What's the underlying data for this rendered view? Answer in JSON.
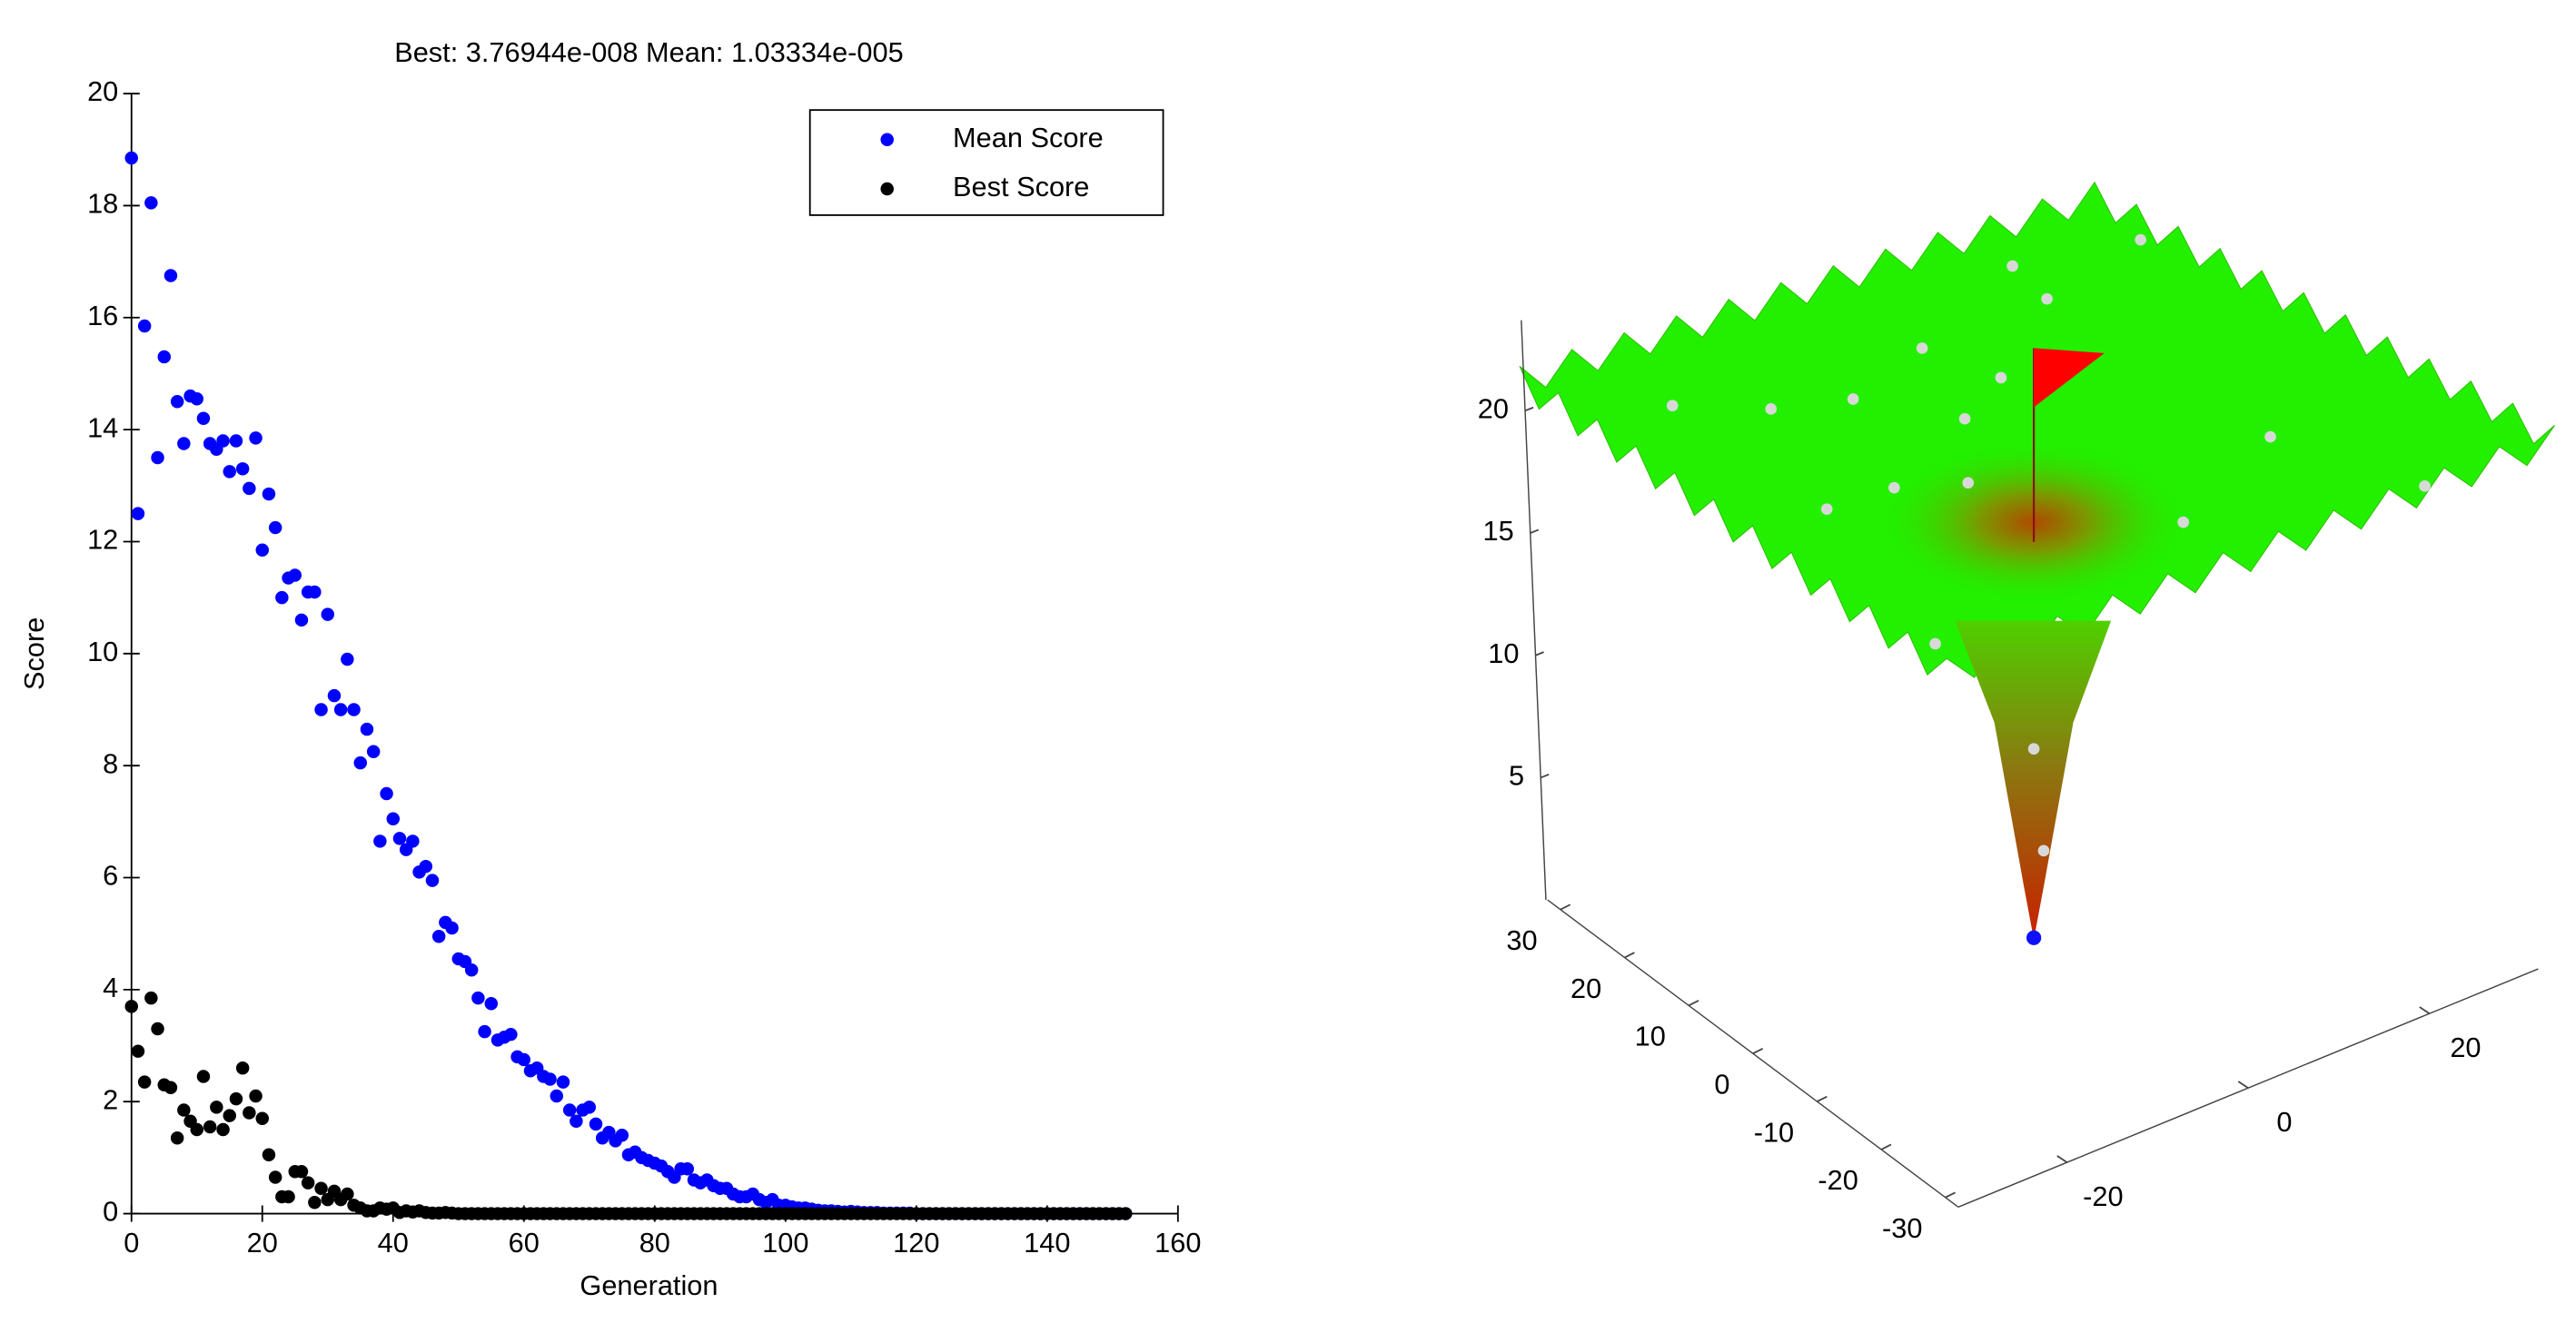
{
  "chart_data": [
    {
      "type": "scatter",
      "title": "Best: 3.76944e-008 Mean: 1.03334e-005",
      "x_label": "Generation",
      "y_label": "Score",
      "xlim": [
        0,
        160
      ],
      "xticks": [
        0,
        20,
        40,
        60,
        80,
        100,
        120,
        140,
        160
      ],
      "ylim": [
        0,
        20
      ],
      "yticks": [
        0,
        2,
        4,
        6,
        8,
        10,
        12,
        14,
        16,
        18,
        20
      ],
      "legend": "northeast",
      "x": [
        0,
        1,
        2,
        3,
        4,
        5,
        6,
        7,
        8,
        9,
        10,
        11,
        12,
        13,
        14,
        15,
        16,
        17,
        18,
        19,
        20,
        21,
        22,
        23,
        24,
        25,
        26,
        27,
        28,
        29,
        30,
        31,
        32,
        33,
        34,
        35,
        36,
        37,
        38,
        39,
        40,
        41,
        42,
        43,
        44,
        45,
        46,
        47,
        48,
        49,
        50,
        51,
        52,
        53,
        54,
        55,
        56,
        57,
        58,
        59,
        60,
        61,
        62,
        63,
        64,
        65,
        66,
        67,
        68,
        69,
        70,
        71,
        72,
        73,
        74,
        75,
        76,
        77,
        78,
        79,
        80,
        81,
        82,
        83,
        84,
        85,
        86,
        87,
        88,
        89,
        90,
        91,
        92,
        93,
        94,
        95,
        96,
        97,
        98,
        99,
        100,
        101,
        102,
        103,
        104,
        105,
        106,
        107,
        108,
        109,
        110,
        111,
        112,
        113,
        114,
        115,
        116,
        117,
        118,
        119,
        120,
        121,
        122,
        123,
        124,
        125,
        126,
        127,
        128,
        129,
        130,
        131,
        132,
        133,
        134,
        135,
        136,
        137,
        138,
        139,
        140,
        141,
        142,
        143,
        144,
        145,
        146,
        147,
        148,
        149,
        150,
        151,
        152
      ],
      "series": [
        {
          "name": "Mean Score",
          "color": "#0000ff",
          "values": [
            18.85,
            12.5,
            15.85,
            18.05,
            13.5,
            15.3,
            16.75,
            14.5,
            13.75,
            14.6,
            14.55,
            14.2,
            13.75,
            13.65,
            13.8,
            13.25,
            13.8,
            13.3,
            12.95,
            13.85,
            11.85,
            12.85,
            12.25,
            11.0,
            11.35,
            11.4,
            10.6,
            11.1,
            11.1,
            9.0,
            10.7,
            9.25,
            9.0,
            9.9,
            9.0,
            8.05,
            8.65,
            8.25,
            6.65,
            7.5,
            7.05,
            6.7,
            6.5,
            6.65,
            6.1,
            6.2,
            5.95,
            4.95,
            5.2,
            5.1,
            4.55,
            4.5,
            4.35,
            3.85,
            3.25,
            3.75,
            3.1,
            3.15,
            3.2,
            2.8,
            2.75,
            2.55,
            2.6,
            2.45,
            2.4,
            2.1,
            2.35,
            1.85,
            1.65,
            1.85,
            1.9,
            1.6,
            1.35,
            1.45,
            1.3,
            1.4,
            1.05,
            1.1,
            1.0,
            0.95,
            0.9,
            0.85,
            0.75,
            0.65,
            0.8,
            0.8,
            0.6,
            0.55,
            0.6,
            0.5,
            0.45,
            0.45,
            0.35,
            0.3,
            0.3,
            0.35,
            0.25,
            0.2,
            0.25,
            0.15,
            0.15,
            0.12,
            0.1,
            0.1,
            0.08,
            0.06,
            0.05,
            0.05,
            0.04,
            0.03,
            0.04,
            0.03,
            0.02,
            0.02,
            0.02,
            0.01,
            0.01,
            0.01,
            0.01,
            0.01,
            0,
            0,
            0,
            0,
            0,
            0,
            0,
            0,
            0,
            0,
            0,
            0,
            0,
            0,
            0,
            0,
            0,
            0,
            0,
            0,
            0,
            0,
            0,
            0,
            0,
            0,
            0,
            0,
            0,
            0,
            0,
            0,
            0
          ]
        },
        {
          "name": "Best Score",
          "color": "#000000",
          "values": [
            3.7,
            2.9,
            2.35,
            3.85,
            3.3,
            2.3,
            2.25,
            1.35,
            1.85,
            1.65,
            1.5,
            2.45,
            1.55,
            1.9,
            1.5,
            1.75,
            2.05,
            2.6,
            1.8,
            2.1,
            1.7,
            1.05,
            0.65,
            0.3,
            0.3,
            0.75,
            0.75,
            0.55,
            0.2,
            0.45,
            0.25,
            0.4,
            0.25,
            0.35,
            0.15,
            0.1,
            0.05,
            0.05,
            0.1,
            0.08,
            0.1,
            0.02,
            0.05,
            0.03,
            0.05,
            0.02,
            0.01,
            0.01,
            0.02,
            0.01,
            0,
            0,
            0,
            0,
            0,
            0,
            0,
            0,
            0,
            0,
            0,
            0,
            0,
            0,
            0,
            0,
            0,
            0,
            0,
            0,
            0,
            0,
            0,
            0,
            0,
            0,
            0,
            0,
            0,
            0,
            0,
            0,
            0,
            0,
            0,
            0,
            0,
            0,
            0,
            0,
            0,
            0,
            0,
            0,
            0,
            0,
            0,
            0,
            0,
            0,
            0,
            0,
            0,
            0,
            0,
            0,
            0,
            0,
            0,
            0,
            0,
            0,
            0,
            0,
            0,
            0,
            0,
            0,
            0,
            0,
            0,
            0,
            0,
            0,
            0,
            0,
            0,
            0,
            0,
            0,
            0,
            0,
            0,
            0,
            0,
            0,
            0,
            0,
            0,
            0,
            0,
            0,
            0,
            0,
            0,
            0,
            0,
            0,
            0,
            0,
            0,
            0,
            0
          ]
        }
      ]
    },
    {
      "type": "surface3d",
      "xlim": [
        -32,
        32
      ],
      "xticks": [
        -20,
        0,
        20
      ],
      "ylim": [
        -32,
        32
      ],
      "yticks": [
        -30,
        -20,
        -10,
        0,
        10,
        20,
        30
      ],
      "zlim": [
        0,
        23.7
      ],
      "zticks": [
        5,
        10,
        15,
        20
      ]
    }
  ]
}
